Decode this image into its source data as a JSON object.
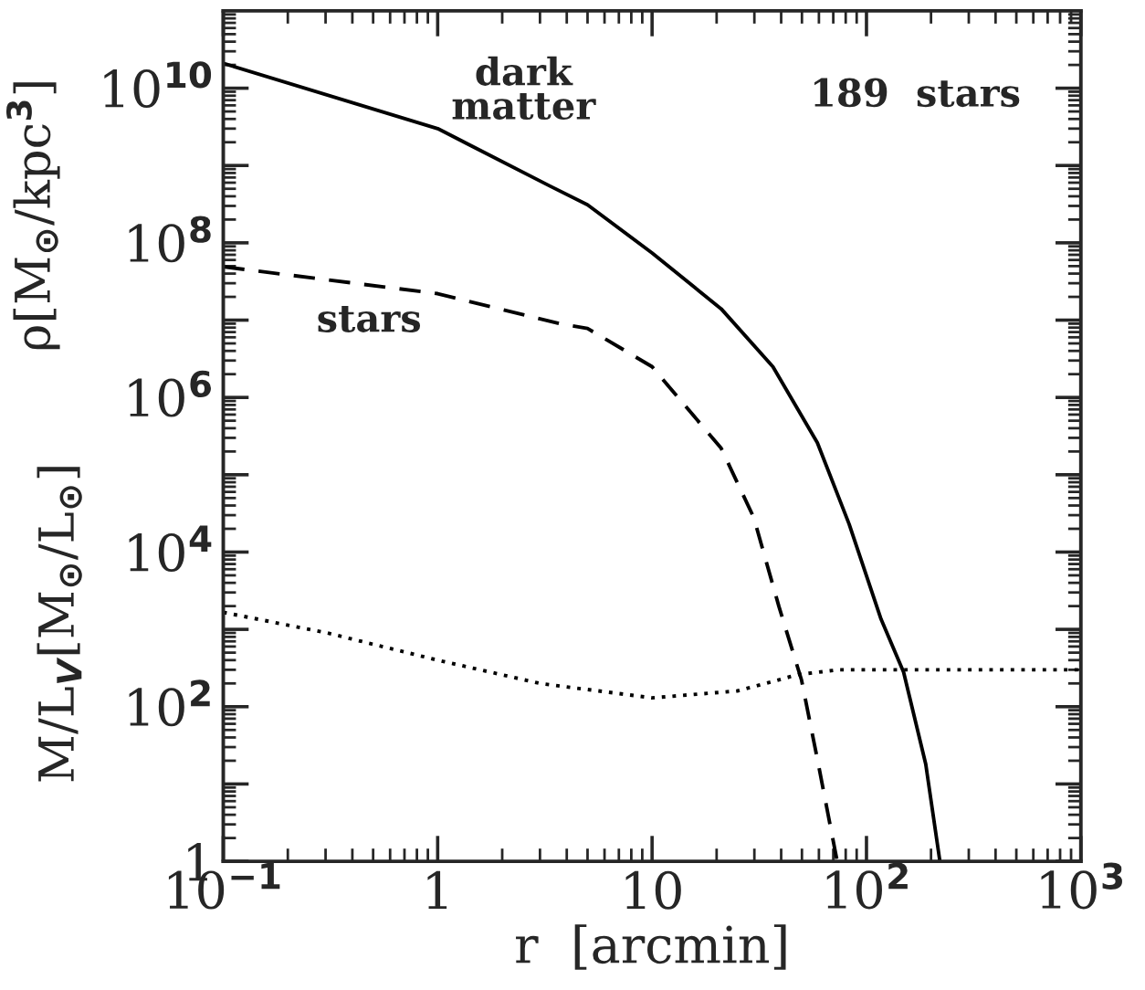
{
  "chart_data": {
    "type": "line",
    "xlabel": "r  [arcmin]",
    "ylabel": "ρ[M$_{⊙}$/kpc$^{3}$]",
    "log": "xy",
    "grid": false,
    "legend": false,
    "xlim": [
      0.1,
      1000
    ],
    "ylim": [
      1,
      100000000000.0
    ],
    "xticks": [
      {
        "value": 0.1,
        "label": "10$^{−1}$"
      },
      1,
      10,
      {
        "value": 100,
        "label": "10$^{2}$"
      },
      {
        "value": 1000,
        "label": "10$^{3}$"
      }
    ],
    "yticks": [
      1,
      {
        "value": 10,
        "label": null
      },
      {
        "value": 100,
        "label": "10$^{2}$"
      },
      {
        "value": 1000,
        "label": null
      },
      {
        "value": 10000,
        "label": "10$^{4}$"
      },
      {
        "value": 100000,
        "label": null
      },
      {
        "value": 1000000,
        "label": "10$^{6}$"
      },
      {
        "value": 10000000,
        "label": null
      },
      {
        "value": 100000000,
        "label": "10$^{8}$"
      },
      {
        "value": 1000000000,
        "label": null
      },
      {
        "value": 10000000000,
        "label": "10$^{10}$"
      }
    ],
    "series": [
      {
        "color": "#000000",
        "line_style": "solid",
        "x": [
          0.1,
          1,
          3.35,
          5,
          10,
          21,
          36.6,
          59,
          83,
          117,
          149,
          189,
          220
        ],
        "values": [
          21000000000.0,
          3000000000.0,
          540000000.0,
          310000000.0,
          74000000.0,
          14000000.0,
          2500000.0,
          260000.0,
          23000.0,
          1350,
          280,
          18,
          1
        ]
      },
      {
        "color": "#000000",
        "line_style": "dashed",
        "x": [
          0.1,
          1,
          3.7,
          5,
          10,
          21,
          29.8,
          39,
          49.8,
          59,
          73
        ],
        "values": [
          49000000.0,
          22000000.0,
          9000000.0,
          7800000.0,
          2500000.0,
          220000.0,
          28000.0,
          2000,
          220,
          21,
          1
        ]
      },
      {
        "color": "#000000",
        "line_style": "dotted",
        "x": [
          0.1,
          0.3,
          1,
          3,
          10,
          25,
          48,
          74,
          100,
          1000
        ],
        "values": [
          1660,
          910,
          400,
          200,
          130,
          160,
          260,
          300,
          300,
          300
        ]
      }
    ],
    "annotations": [
      "dark\nmatter",
      "stars",
      "189  stars",
      "M/L$_{V}$[M$_{⊙}$/L$_{⊙}$]"
    ]
  }
}
